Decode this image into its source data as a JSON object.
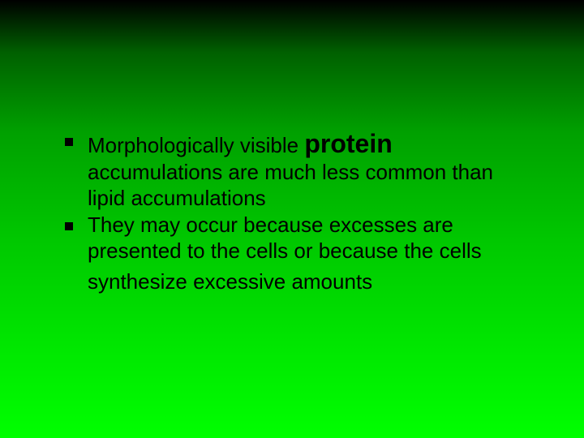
{
  "slide": {
    "background": {
      "gradient_stops": [
        "#000000",
        "#006000",
        "#00a000",
        "#00c800",
        "#00e800",
        "#00ff00"
      ],
      "direction": "top-to-bottom"
    },
    "text_color": "#000000",
    "bullet_color": "#000000",
    "body_fontsize": 26,
    "bold_fontsize": 32,
    "bullets": [
      {
        "prefix": "Morphologically visible ",
        "bold": "protein",
        "rest": " accumulations are much less common than lipid accumulations"
      },
      {
        "prefix": "They may occur because excesses are presented to the cells or because the cells synthesize excessive amounts",
        "bold": "",
        "rest": ""
      }
    ]
  }
}
